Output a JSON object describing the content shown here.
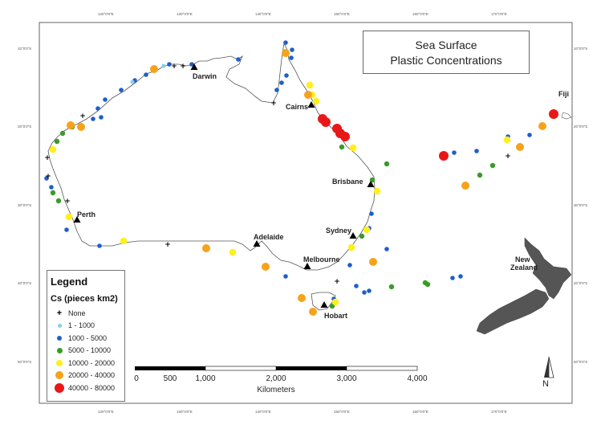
{
  "title": {
    "line1": "Sea Surface",
    "line2": "Plastic Concentrations"
  },
  "legend": {
    "title": "Legend",
    "subtitle": "Cs (pieces km2)",
    "classes": [
      {
        "label": "None",
        "symbol": "plus",
        "color": "#000000"
      },
      {
        "label": "1 - 1000",
        "symbol": "dot",
        "color": "#87ceeb"
      },
      {
        "label": "1000 - 5000",
        "symbol": "dot",
        "color": "#1f5fc9"
      },
      {
        "label": "5000 - 10000",
        "symbol": "dot",
        "color": "#3a9a2a"
      },
      {
        "label": "10000 - 20000",
        "symbol": "dot",
        "color": "#ffef1a"
      },
      {
        "label": "20000 - 40000",
        "symbol": "dot",
        "color": "#f7a21b"
      },
      {
        "label": "40000 - 80000",
        "symbol": "dot",
        "color": "#e81818"
      }
    ]
  },
  "scale_bar": {
    "labels": [
      "0",
      "500",
      "1,000",
      "2,000",
      "3,000",
      "4,000"
    ],
    "unit": "Kilometers"
  },
  "north_arrow": {
    "label": "N"
  },
  "places": {
    "darwin": "Darwin",
    "cairns": "Cairns",
    "brisbane": "Brisbane",
    "sydney": "Sydney",
    "melbourne": "Melbourne",
    "hobart": "Hobart",
    "adelaide": "Adelaide",
    "perth": "Perth",
    "fiji": "Fiji",
    "new_zealand_1": "New",
    "new_zealand_2": "Zealand"
  },
  "graticule": {
    "top_lon": [
      "120°0'0\"E",
      "130°0'0\"E",
      "140°0'0\"E",
      "150°0'0\"E",
      "160°0'0\"E",
      "170°0'0\"E"
    ],
    "bottom_lon": [
      "120°0'0\"E",
      "130°0'0\"E",
      "140°0'0\"E",
      "150°0'0\"E",
      "160°0'0\"E",
      "170°0'0\"E"
    ],
    "left_lat": [
      "10°0'0\"S",
      "20°0'0\"S",
      "30°0'0\"S",
      "40°0'0\"S",
      "50°0'0\"S"
    ],
    "right_lat": [
      "10°0'0\"S",
      "20°0'0\"S",
      "30°0'0\"S",
      "40°0'0\"S",
      "50°0'0\"S"
    ]
  },
  "colors": {
    "none": "#000000",
    "c1": "#87ceeb",
    "c2": "#1f5fc9",
    "c3": "#3a9a2a",
    "c4": "#ffef1a",
    "c5": "#f7a21b",
    "c6": "#e81818",
    "new_zealand": "#555555"
  }
}
